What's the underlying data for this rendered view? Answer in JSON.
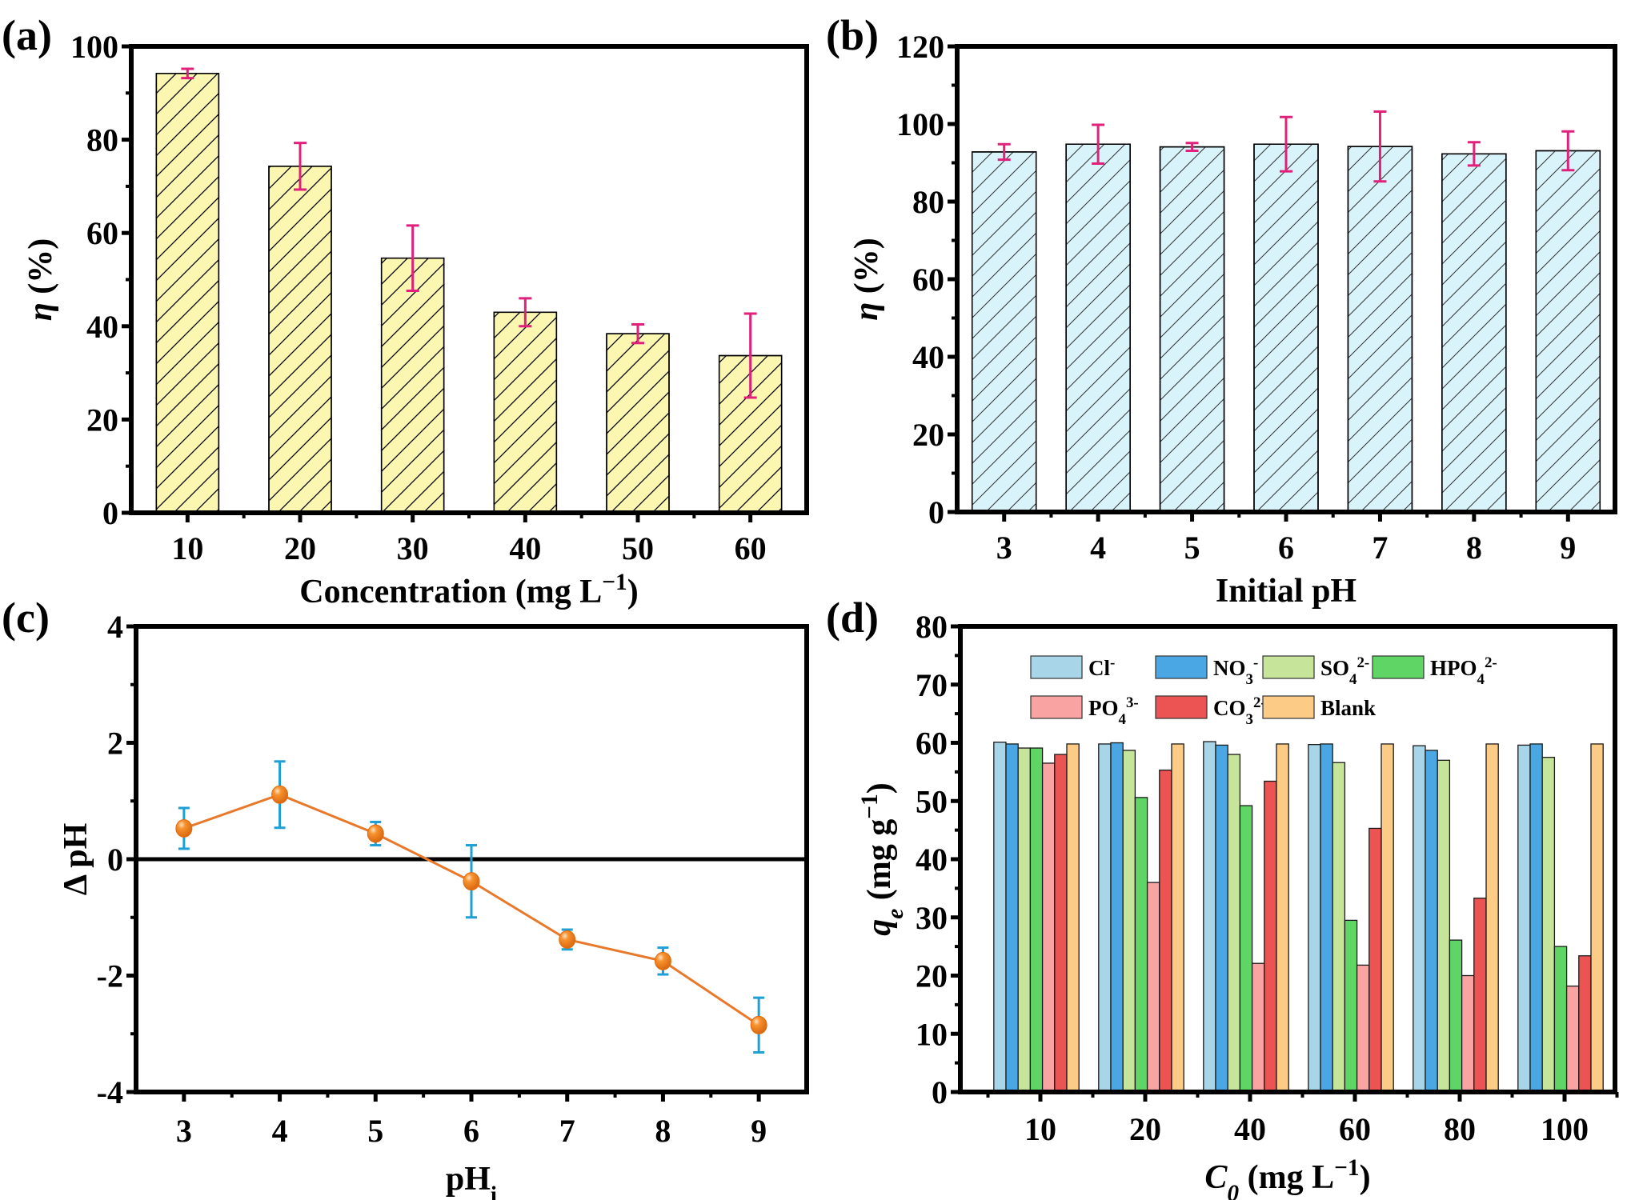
{
  "figure": {
    "panels": [
      "(a)",
      "(b)",
      "(c)",
      "(d)"
    ]
  },
  "chart_data": [
    {
      "id": "a",
      "panel_label": "(a)",
      "type": "bar",
      "title": "",
      "xlabel": "Concentration (mg L⁻¹)",
      "ylabel": "η (%)",
      "categories": [
        "10",
        "20",
        "30",
        "40",
        "50",
        "60"
      ],
      "values": [
        94.2,
        74.3,
        54.6,
        43.0,
        38.4,
        33.7
      ],
      "errors": [
        1.0,
        5.0,
        7.0,
        3.0,
        2.0,
        9.0
      ],
      "ylim": [
        0,
        100
      ],
      "yticks": [
        0,
        20,
        40,
        60,
        80,
        100
      ],
      "colors": {
        "fill": "#fbf6b0",
        "hatch": "#000000",
        "error": "#e0207a"
      },
      "hatch": "diagonal",
      "grid": false
    },
    {
      "id": "b",
      "panel_label": "(b)",
      "type": "bar",
      "title": "",
      "xlabel": "Initial pH",
      "ylabel": "η (%)",
      "categories": [
        "3",
        "4",
        "5",
        "6",
        "7",
        "8",
        "9"
      ],
      "values": [
        92.8,
        94.8,
        94.1,
        94.8,
        94.2,
        92.3,
        93.1
      ],
      "errors": [
        2.0,
        5.0,
        1.0,
        7.0,
        9.0,
        3.0,
        5.0
      ],
      "ylim": [
        0,
        120
      ],
      "yticks": [
        0,
        20,
        40,
        60,
        80,
        100,
        120
      ],
      "colors": {
        "fill": "#d9f3fb",
        "hatch": "#000000",
        "error": "#e0207a"
      },
      "hatch": "diagonal",
      "grid": false
    },
    {
      "id": "c",
      "panel_label": "(c)",
      "type": "line",
      "title": "",
      "xlabel": "pH",
      "xlabel_sub": "i",
      "ylabel": "Δ pH",
      "x": [
        3,
        4,
        5,
        6,
        7,
        8,
        9
      ],
      "values": [
        0.53,
        1.11,
        0.44,
        -0.38,
        -1.38,
        -1.75,
        -2.85
      ],
      "errors": [
        0.35,
        0.57,
        0.2,
        0.62,
        0.17,
        0.23,
        0.47
      ],
      "xlim": [
        2.5,
        9.5
      ],
      "ylim": [
        -4,
        4
      ],
      "xticks": [
        3,
        4,
        5,
        6,
        7,
        8,
        9
      ],
      "yticks": [
        -4,
        -2,
        0,
        2,
        4
      ],
      "reference_line": 0,
      "colors": {
        "line": "#e8782a",
        "marker": "#f07f1e",
        "error": "#1e9fd6"
      },
      "grid": false
    },
    {
      "id": "d",
      "panel_label": "(d)",
      "type": "bar",
      "title": "",
      "xlabel_main": "C",
      "xlabel_sub": "0",
      "xlabel_rest": " (mg L⁻¹)",
      "ylabel_main": "q",
      "ylabel_sub": "e",
      "ylabel_rest": " (mg g⁻¹)",
      "categories": [
        "10",
        "20",
        "40",
        "60",
        "80",
        "100"
      ],
      "ylim": [
        0,
        80
      ],
      "yticks": [
        0,
        10,
        20,
        30,
        40,
        50,
        60,
        70,
        80
      ],
      "legend_position": "top",
      "series": [
        {
          "name": "Cl",
          "sup": "-",
          "sub": "",
          "color": "#a9d5e8",
          "values": [
            60.1,
            59.8,
            60.2,
            59.7,
            59.5,
            59.6
          ]
        },
        {
          "name": "NO",
          "sub": "3",
          "sup": "-",
          "color": "#4aa7e3",
          "values": [
            59.8,
            60.0,
            59.6,
            59.8,
            58.7,
            59.8
          ]
        },
        {
          "name": "SO",
          "sub": "4",
          "sup": "2-",
          "color": "#c7e59a",
          "values": [
            59.1,
            58.7,
            58.0,
            56.6,
            57.0,
            57.5
          ]
        },
        {
          "name": "HPO",
          "sub": "4",
          "sup": "2-",
          "color": "#5fd565",
          "values": [
            59.1,
            50.6,
            49.2,
            29.5,
            26.1,
            25.0
          ]
        },
        {
          "name": "PO",
          "sub": "4",
          "sup": "3-",
          "color": "#f9a3a3",
          "values": [
            56.5,
            36.0,
            22.1,
            21.8,
            20.0,
            18.2
          ]
        },
        {
          "name": "CO",
          "sub": "3",
          "sup": "2-",
          "color": "#ec5454",
          "values": [
            58.0,
            55.3,
            53.4,
            45.3,
            33.3,
            23.4
          ]
        },
        {
          "name": "Blank",
          "sub": "",
          "sup": "",
          "color": "#fccb86",
          "values": [
            59.8,
            59.8,
            59.8,
            59.8,
            59.8,
            59.8
          ]
        }
      ],
      "grid": false
    }
  ]
}
